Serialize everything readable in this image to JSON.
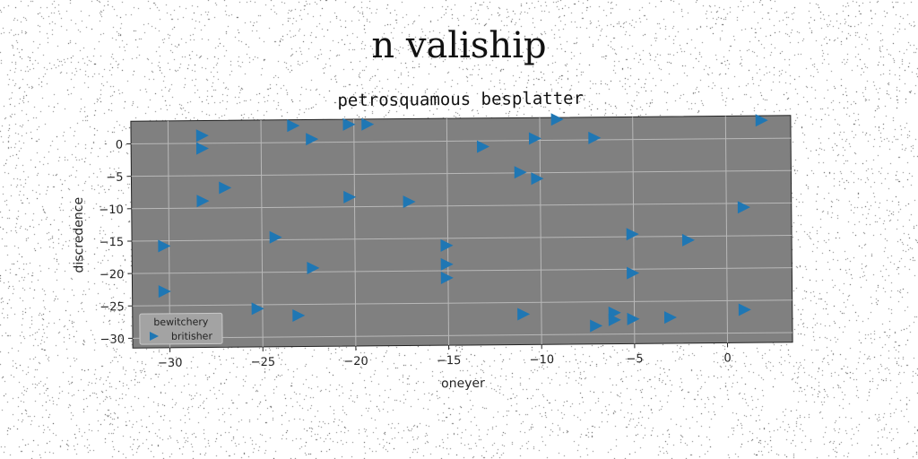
{
  "page": {
    "suptitle": "n valiship"
  },
  "chart_data": {
    "type": "scatter",
    "title": "petrosquamous besplatter",
    "xlabel": "oneyer",
    "ylabel": "discredence",
    "xlim": [
      -32,
      3.5
    ],
    "ylim": [
      -31.5,
      3.5
    ],
    "xticks": [
      -30,
      -25,
      -20,
      -15,
      -10,
      -5,
      0
    ],
    "yticks": [
      0,
      -5,
      -10,
      -15,
      -20,
      -25,
      -30
    ],
    "grid": true,
    "background_color": "#808080",
    "series": [
      {
        "name": "britisher",
        "marker": "triangle-right",
        "color": "#1f77b4",
        "x": [
          -28.2,
          -28.2,
          -27.0,
          -28.2,
          -30.3,
          -30.3,
          -23.3,
          -22.3,
          -24.3,
          -22.3,
          -25.3,
          -23.1,
          -20.3,
          -19.3,
          -20.3,
          -17.1,
          -15.1,
          -15.1,
          -15.1,
          -13.1,
          -11.1,
          -10.3,
          -10.2,
          -9.1,
          -7.1,
          -11.0,
          -7.1,
          -6.1,
          -6.1,
          -5.1,
          -5.1,
          -5.1,
          -3.1,
          -2.1,
          0.9,
          0.9,
          1.9
        ],
        "y": [
          1.2,
          -0.8,
          -6.9,
          -8.9,
          -15.8,
          -22.8,
          2.6,
          0.5,
          -14.6,
          -19.4,
          -25.6,
          -26.7,
          2.7,
          2.7,
          -8.5,
          -9.3,
          -16.1,
          -19.0,
          -21.1,
          -0.9,
          -4.9,
          0.3,
          -5.9,
          3.2,
          0.3,
          -26.8,
          -28.7,
          -26.7,
          -27.8,
          -14.6,
          -20.6,
          -27.7,
          -27.5,
          -15.6,
          -10.6,
          -26.4,
          2.8
        ]
      }
    ],
    "legend": {
      "title": "bewitchery",
      "entries": [
        "britisher"
      ],
      "placement": "lower-left"
    }
  }
}
